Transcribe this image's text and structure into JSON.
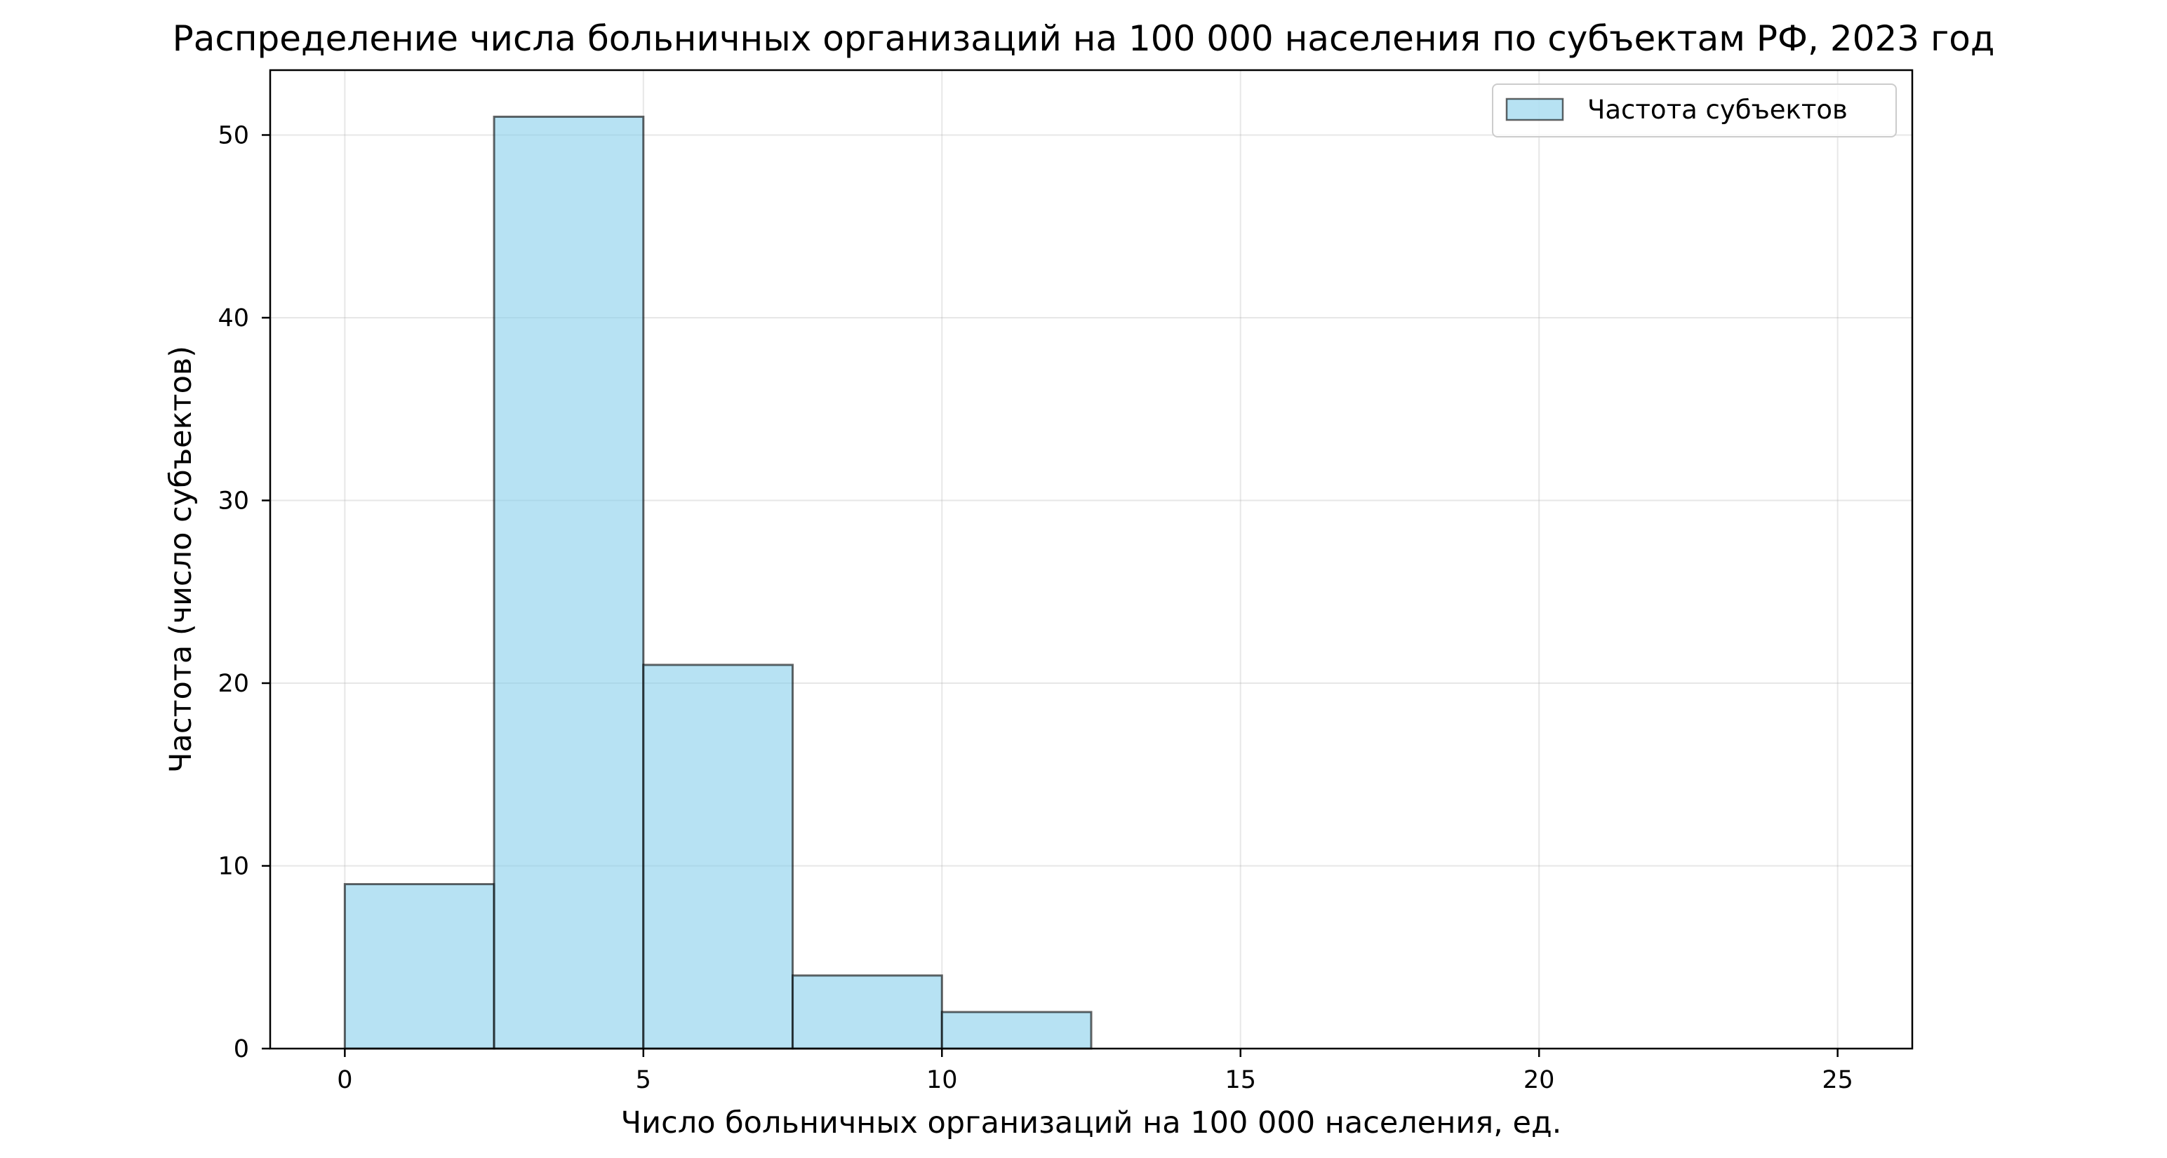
{
  "chart_data": {
    "type": "bar",
    "title": "Распределение числа больничных организаций на 100 000 населения по субъектам РФ, 2023 год",
    "xlabel": "Число больничных организаций на 100 000 населения, ед.",
    "ylabel": "Частота (число субъектов)",
    "bins": [
      {
        "start": 0,
        "end": 2.5,
        "value": 9
      },
      {
        "start": 2.5,
        "end": 5,
        "value": 51
      },
      {
        "start": 5,
        "end": 7.5,
        "value": 21
      },
      {
        "start": 7.5,
        "end": 10,
        "value": 4
      },
      {
        "start": 10,
        "end": 12.5,
        "value": 2
      },
      {
        "start": 12.5,
        "end": 15,
        "value": 0
      },
      {
        "start": 15,
        "end": 17.5,
        "value": 0
      },
      {
        "start": 17.5,
        "end": 20,
        "value": 0
      },
      {
        "start": 20,
        "end": 22.5,
        "value": 0
      },
      {
        "start": 22.5,
        "end": 25,
        "value": 0
      }
    ],
    "xlim": [
      -1.25,
      26.25
    ],
    "ylim": [
      0,
      53.55
    ],
    "xticks": [
      0,
      5,
      10,
      15,
      20,
      25
    ],
    "yticks": [
      0,
      10,
      20,
      30,
      40,
      50
    ],
    "grid": true,
    "series": [
      {
        "name": "Частота субъектов",
        "color": "#87ceeb",
        "edge_color": "#000000"
      }
    ],
    "legend_position": "top-right"
  }
}
